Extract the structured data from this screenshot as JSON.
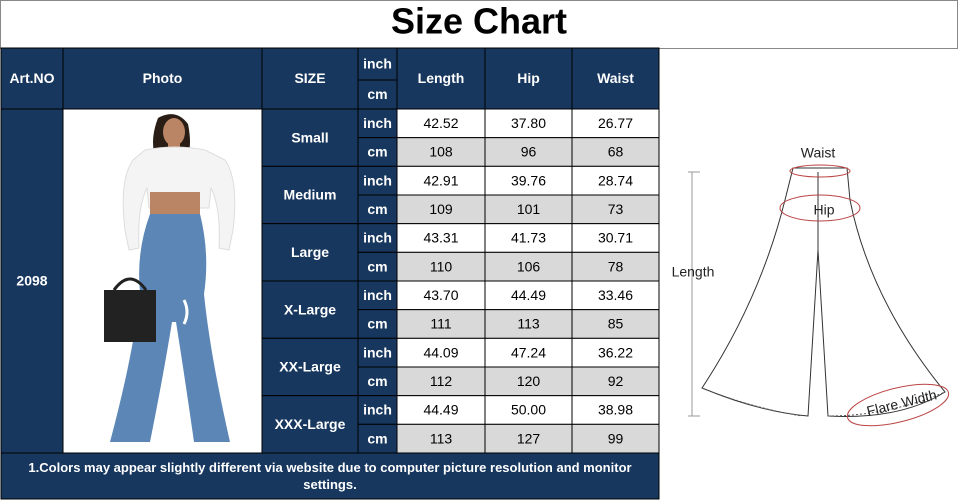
{
  "title": "Size Chart",
  "table": {
    "headers": {
      "art_no": "Art.NO",
      "photo": "Photo",
      "size": "SIZE",
      "units": [
        "inch",
        "cm"
      ],
      "columns": [
        "Length",
        "Hip",
        "Waist"
      ]
    },
    "art_no": "2098",
    "rows": [
      {
        "size": "Small",
        "inch": [
          "42.52",
          "37.80",
          "26.77"
        ],
        "cm": [
          "108",
          "96",
          "68"
        ]
      },
      {
        "size": "Medium",
        "inch": [
          "42.91",
          "39.76",
          "28.74"
        ],
        "cm": [
          "109",
          "101",
          "73"
        ]
      },
      {
        "size": "Large",
        "inch": [
          "43.31",
          "41.73",
          "30.71"
        ],
        "cm": [
          "110",
          "106",
          "78"
        ]
      },
      {
        "size": "X-Large",
        "inch": [
          "43.70",
          "44.49",
          "33.46"
        ],
        "cm": [
          "111",
          "113",
          "85"
        ]
      },
      {
        "size": "XX-Large",
        "inch": [
          "44.09",
          "47.24",
          "36.22"
        ],
        "cm": [
          "112",
          "120",
          "92"
        ]
      },
      {
        "size": "XXX-Large",
        "inch": [
          "44.49",
          "50.00",
          "38.98"
        ],
        "cm": [
          "113",
          "127",
          "99"
        ]
      }
    ],
    "note": "1.Colors may appear slightly different via website due to computer picture resolution and monitor settings."
  },
  "diagram": {
    "waist": "Waist",
    "hip": "Hip",
    "length": "Length",
    "flare": "Flare Width"
  }
}
